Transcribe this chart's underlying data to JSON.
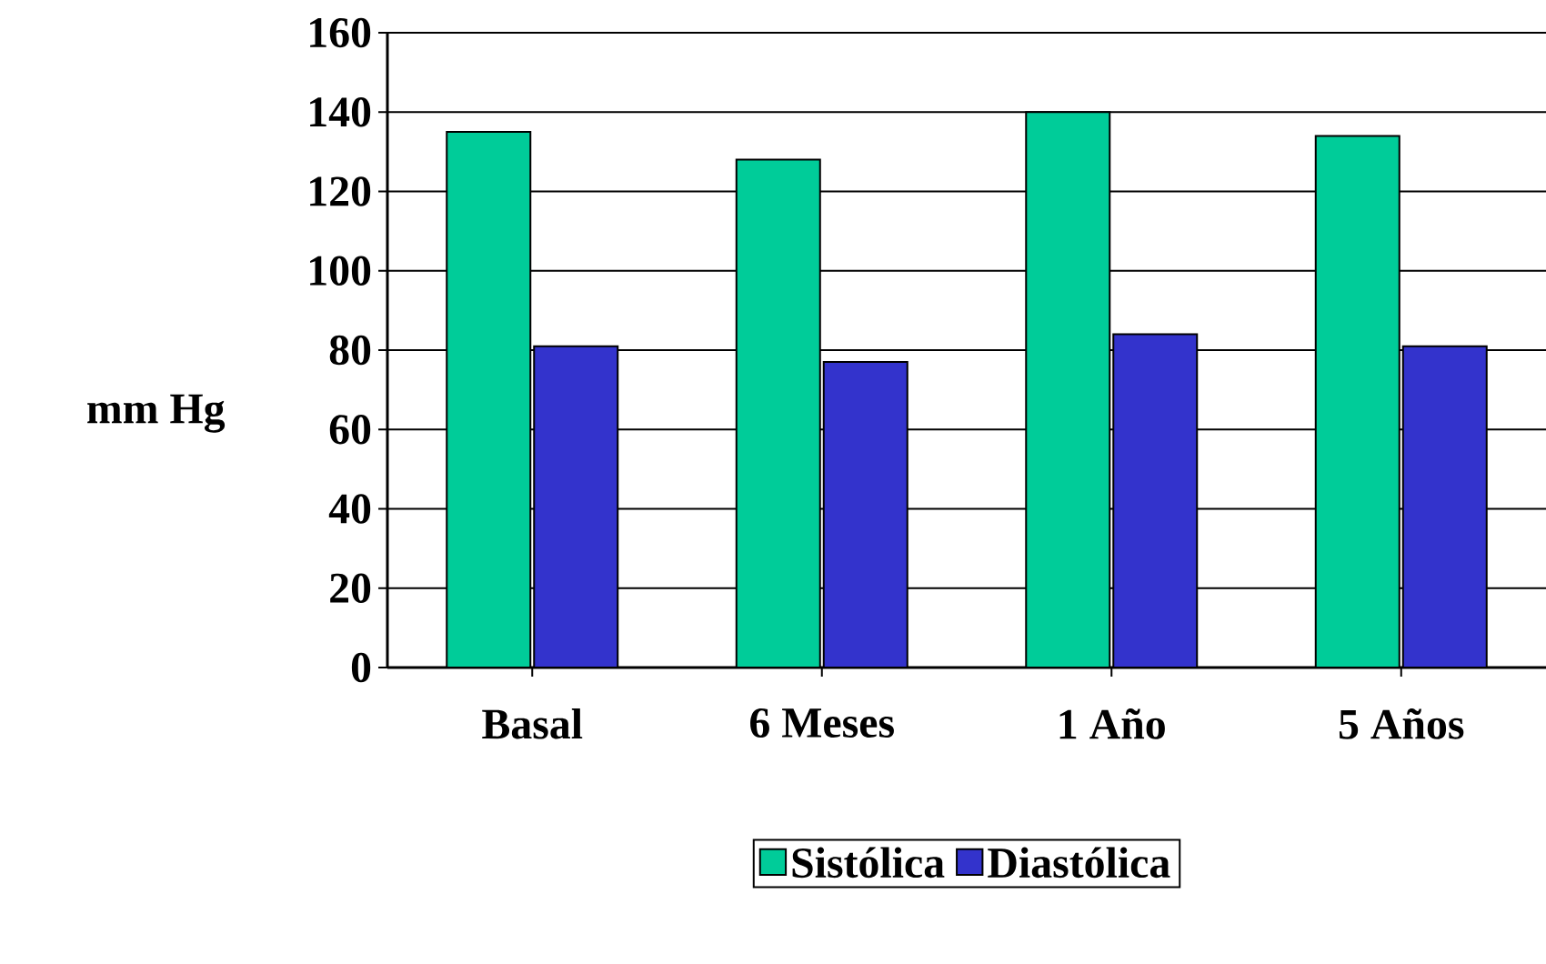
{
  "chart_data": {
    "type": "bar",
    "ylabel": "mm Hg",
    "categories": [
      "Basal",
      "6 Meses",
      "1 Año",
      "5 Años"
    ],
    "series": [
      {
        "name": "Sistólica",
        "color": "#00cc99",
        "values": [
          135,
          128,
          140,
          134
        ]
      },
      {
        "name": "Diastólica",
        "color": "#3333cc",
        "values": [
          81,
          77,
          84,
          81
        ]
      }
    ],
    "ylim": [
      0,
      160
    ],
    "yticks": [
      0,
      20,
      40,
      60,
      80,
      100,
      120,
      140,
      160
    ],
    "grid": "y",
    "legend": "bottom"
  }
}
